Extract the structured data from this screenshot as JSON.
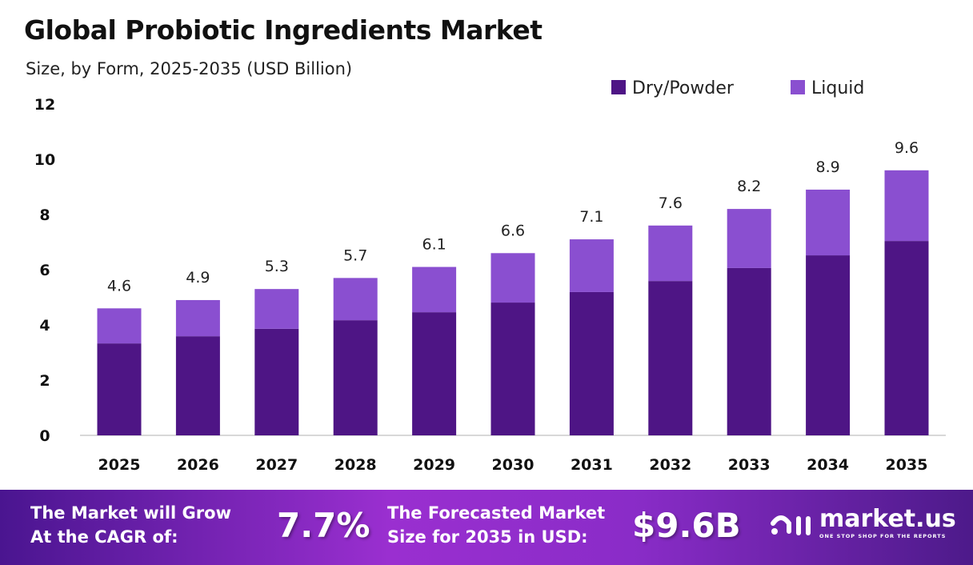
{
  "chart_data": {
    "type": "bar",
    "stacked": true,
    "title": "Global Probiotic Ingredients Market",
    "subtitle": "Size, by Form, 2025-2035 (USD Billion)",
    "xlabel": "",
    "ylabel": "",
    "ylim": [
      0,
      12
    ],
    "yticks": [
      0,
      2,
      4,
      6,
      8,
      10,
      12
    ],
    "grid": false,
    "legend_placement": "top-right",
    "categories": [
      "2025",
      "2026",
      "2027",
      "2028",
      "2029",
      "2030",
      "2031",
      "2032",
      "2033",
      "2034",
      "2035"
    ],
    "series": [
      {
        "name": "Dry/Powder",
        "color": "#4e1585",
        "values": [
          3.33,
          3.59,
          3.86,
          4.17,
          4.46,
          4.81,
          5.19,
          5.59,
          6.06,
          6.52,
          7.04
        ]
      },
      {
        "name": "Liquid",
        "color": "#8a4fd0",
        "values": [
          1.27,
          1.31,
          1.44,
          1.53,
          1.64,
          1.79,
          1.91,
          2.01,
          2.14,
          2.38,
          2.56
        ]
      }
    ],
    "totals": [
      "4.6",
      "4.9",
      "5.3",
      "5.7",
      "6.1",
      "6.6",
      "7.1",
      "7.6",
      "8.2",
      "8.9",
      "9.6"
    ]
  },
  "footer": {
    "cagr_label_1": "The Market will Grow",
    "cagr_label_2": "At the CAGR of:",
    "cagr_value": "7.7%",
    "size_label_1": "The Forecasted Market",
    "size_label_2": "Size for 2035 in USD:",
    "size_value": "$9.6B",
    "logo_text": "market.us",
    "logo_tagline": "ONE STOP SHOP FOR THE REPORTS"
  }
}
